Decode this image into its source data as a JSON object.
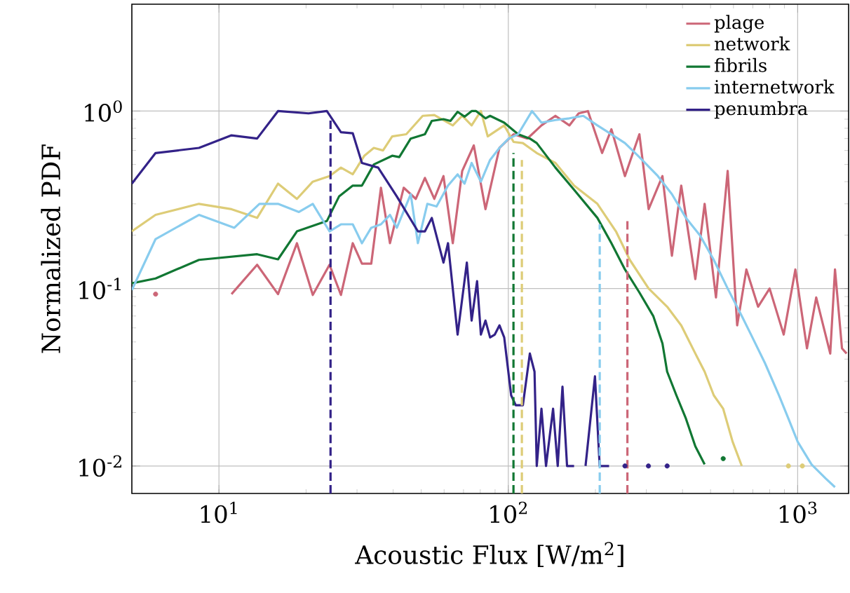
{
  "chart_data": {
    "type": "line",
    "xlabel": "Acoustic Flux [W/m$^{2}$]",
    "ylabel": "Normalized PDF",
    "log": "xy",
    "grid": true,
    "legend": "top right",
    "xlim": [
      5,
      1500
    ],
    "ylim": [
      0.007,
      4
    ],
    "xticks": [
      {
        "value": 10,
        "label": "10$^{1}$"
      },
      {
        "value": 100,
        "label": "10$^{2}$"
      },
      {
        "value": 1000,
        "label": "10$^{3}$"
      }
    ],
    "yticks": [
      {
        "value": 0.01,
        "label": "10$^{-2}$"
      },
      {
        "value": 0.1,
        "label": "10$^{-1}$"
      },
      {
        "value": 1,
        "label": "10$^{0}$"
      }
    ],
    "series": [
      {
        "name": "plage",
        "color": "#cc6677",
        "x": [
          6.04,
          6.5,
          11.05,
          13.55,
          16.0,
          18.6,
          21.1,
          24.1,
          26.4,
          29.0,
          31.2,
          33.6,
          36.3,
          39.0,
          43.5,
          47.9,
          51.5,
          55.5,
          59.7,
          64.3,
          69.3,
          76.0,
          83.4,
          93.2,
          104.3,
          116.4,
          130.2,
          145.5,
          162.6,
          175.0,
          188.5,
          210.9,
          227.2,
          253,
          283.8,
          305.5,
          341,
          367.7,
          396,
          443,
          477,
          522,
          573,
          618,
          665,
          730,
          800,
          895,
          982,
          1077,
          1159,
          1296,
          1346,
          1423,
          1476
        ],
        "values": [
          0.093,
          null,
          0.093,
          0.136,
          0.093,
          0.18,
          0.092,
          0.136,
          0.092,
          0.18,
          0.138,
          0.138,
          0.37,
          0.18,
          0.37,
          0.32,
          0.42,
          0.32,
          0.43,
          0.18,
          0.46,
          0.64,
          0.28,
          0.62,
          0.74,
          0.7,
          0.83,
          0.94,
          0.83,
          0.97,
          1.0,
          0.58,
          0.79,
          0.43,
          0.74,
          0.28,
          0.43,
          0.153,
          0.38,
          0.113,
          0.3,
          0.089,
          0.46,
          0.062,
          0.128,
          0.079,
          0.1,
          0.055,
          0.128,
          0.046,
          0.089,
          0.043,
          0.128,
          0.046,
          0.043
        ]
      },
      {
        "name": "network",
        "color": "#ddcc77",
        "x": [
          5.0,
          6.04,
          8.53,
          11.05,
          13.55,
          16.0,
          18.6,
          21.1,
          24.1,
          26.4,
          29.0,
          31.8,
          34.3,
          36.9,
          39.7,
          44.4,
          50.6,
          55.5,
          64.3,
          69.3,
          74.7,
          80.4,
          84.9,
          96.8,
          104.3,
          112.3,
          125.4,
          145.5,
          168.8,
          203.2,
          235.5,
          263,
          305.5,
          354,
          396,
          443,
          477,
          513,
          553,
          596,
          641,
          665,
          929,
          978,
          1038
        ],
        "values": [
          0.21,
          0.26,
          0.3,
          0.28,
          0.25,
          0.39,
          0.32,
          0.4,
          0.43,
          0.48,
          0.44,
          0.56,
          0.62,
          0.6,
          0.72,
          0.74,
          0.94,
          0.95,
          0.83,
          0.94,
          0.83,
          1.0,
          0.72,
          0.83,
          0.67,
          0.66,
          0.58,
          0.51,
          0.38,
          0.3,
          0.21,
          0.145,
          0.1,
          0.079,
          0.062,
          0.043,
          0.034,
          0.025,
          0.021,
          0.0137,
          0.01,
          null,
          0.01,
          null,
          0.01
        ]
      },
      {
        "name": "fibrils",
        "color": "#117733",
        "x": [
          5.0,
          6.04,
          8.53,
          13.55,
          16.0,
          18.6,
          23.6,
          26.0,
          29.0,
          31.2,
          34.3,
          39.7,
          42.0,
          46.0,
          51.5,
          54.4,
          59.7,
          63.1,
          66.8,
          70.6,
          74.7,
          77.4,
          83.4,
          86.5,
          96.8,
          108.1,
          118.7,
          125.4,
          145.5,
          168.8,
          203.2,
          227.2,
          253,
          283.8,
          316.9,
          341,
          354,
          381,
          411,
          443,
          477,
          513,
          553
        ],
        "values": [
          0.107,
          0.114,
          0.145,
          0.156,
          0.146,
          0.21,
          0.24,
          0.33,
          0.38,
          0.38,
          0.5,
          0.56,
          0.55,
          0.7,
          0.74,
          0.88,
          0.9,
          0.88,
          0.99,
          0.93,
          1.0,
          1.0,
          0.91,
          0.94,
          0.86,
          0.74,
          0.7,
          0.66,
          0.48,
          0.36,
          0.25,
          0.18,
          0.128,
          0.095,
          0.07,
          0.049,
          0.034,
          0.025,
          0.0185,
          0.0129,
          0.0102,
          null,
          0.011
        ]
      },
      {
        "name": "internetwork",
        "color": "#88ccee",
        "x": [
          5.0,
          6.04,
          8.53,
          11.3,
          13.8,
          16.0,
          18.9,
          21.1,
          24.1,
          26.4,
          29.0,
          31.2,
          33.6,
          36.3,
          39.0,
          41.2,
          46.0,
          48.7,
          52.5,
          56.5,
          61.9,
          66.8,
          70.6,
          74.7,
          80.4,
          86.5,
          93.2,
          100.3,
          108.1,
          120.8,
          130.2,
          145.5,
          162.6,
          181.6,
          203.2,
          227.2,
          253,
          283.8,
          328.8,
          367.7,
          411,
          459,
          513,
          573,
          641,
          690,
          771,
          862,
          929,
          1000,
          1117,
          1250,
          1346
        ],
        "values": [
          0.098,
          0.19,
          0.26,
          0.22,
          0.3,
          0.3,
          0.27,
          0.3,
          0.21,
          0.23,
          0.23,
          0.18,
          0.22,
          0.23,
          0.26,
          0.22,
          0.34,
          0.18,
          0.3,
          0.29,
          0.38,
          0.44,
          0.39,
          0.51,
          0.4,
          0.53,
          0.62,
          0.7,
          0.74,
          1.0,
          0.86,
          0.89,
          0.91,
          0.94,
          0.83,
          0.74,
          0.66,
          0.55,
          0.43,
          0.34,
          0.25,
          0.2,
          0.145,
          0.1,
          0.07,
          0.055,
          0.038,
          0.025,
          0.0185,
          0.0137,
          0.0102,
          0.0085,
          0.0076
        ]
      },
      {
        "name": "penumbra",
        "color": "#332288",
        "x": [
          5.0,
          6.04,
          8.53,
          11.05,
          13.55,
          16.0,
          20.4,
          23.6,
          26.4,
          29.0,
          31.2,
          35.5,
          41.2,
          48.7,
          51.5,
          54.4,
          59.7,
          61.9,
          66.8,
          71.9,
          74.7,
          78.0,
          80.4,
          83.4,
          86.5,
          89.8,
          93.2,
          96.8,
          102.3,
          106.1,
          112.3,
          118.7,
          123.2,
          125.4,
          130.2,
          135.0,
          142.8,
          148.2,
          153.9,
          159.6,
          168.8,
          178.2,
          184.9,
          199.3,
          206.9,
          223,
          238,
          253,
          280,
          305,
          330,
          354
        ],
        "values": [
          0.39,
          0.58,
          0.62,
          0.73,
          0.7,
          1.0,
          0.97,
          1.0,
          0.76,
          0.75,
          0.51,
          0.48,
          0.33,
          0.21,
          0.21,
          0.25,
          0.14,
          0.18,
          0.055,
          0.14,
          0.066,
          0.11,
          0.055,
          0.066,
          0.053,
          0.055,
          0.062,
          0.053,
          0.025,
          0.022,
          0.022,
          0.043,
          0.034,
          0.01,
          0.021,
          0.01,
          0.021,
          0.01,
          0.028,
          0.01,
          0.01,
          null,
          0.01,
          0.032,
          0.01,
          0.01,
          null,
          0.01,
          null,
          0.01,
          null,
          0.01
        ]
      },
      {
        "type": "line",
        "line_style": "dashed",
        "color": "#332288",
        "x": [
          24.3,
          24.3
        ],
        "values": [
          0.007,
          0.91
        ]
      },
      {
        "type": "line",
        "line_style": "dashed",
        "color": "#117733",
        "x": [
          104.2,
          104.2
        ],
        "values": [
          0.007,
          0.58
        ]
      },
      {
        "type": "line",
        "line_style": "dashed",
        "color": "#ddcc77",
        "x": [
          111.4,
          111.4
        ],
        "values": [
          0.007,
          0.53
        ]
      },
      {
        "type": "line",
        "line_style": "dashed",
        "color": "#88ccee",
        "x": [
          207,
          207
        ],
        "values": [
          0.007,
          0.23
        ]
      },
      {
        "type": "line",
        "line_style": "dashed",
        "color": "#cc6677",
        "x": [
          258,
          258
        ],
        "values": [
          0.007,
          0.25
        ]
      }
    ]
  }
}
